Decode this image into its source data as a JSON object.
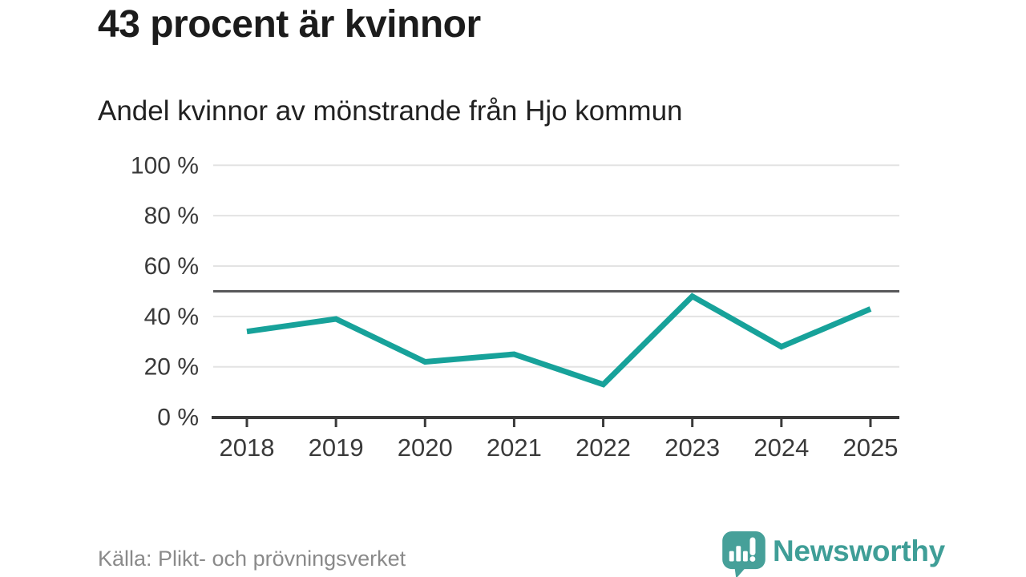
{
  "header": {
    "title": "43 procent är kvinnor",
    "subtitle": "Andel kvinnor av mönstrande från Hjo kommun"
  },
  "chart_data": {
    "type": "line",
    "title": "43 procent är kvinnor",
    "subtitle": "Andel kvinnor av mönstrande från Hjo kommun",
    "categories": [
      "2018",
      "2019",
      "2020",
      "2021",
      "2022",
      "2023",
      "2024",
      "2025"
    ],
    "series": [
      {
        "name": "Andel kvinnor av mönstrande",
        "values": [
          34,
          39,
          22,
          25,
          13,
          48,
          28,
          43
        ]
      }
    ],
    "unit": "%",
    "ylim": [
      0,
      100
    ],
    "yticks": [
      0,
      20,
      40,
      60,
      80,
      100
    ],
    "ytick_labels": [
      "0 %",
      "20 %",
      "40 %",
      "60 %",
      "80 %",
      "100 %"
    ],
    "reference_line_value": 50,
    "grid": "horizontal-only",
    "legend": "none",
    "line_color": "#17a29a",
    "reference_line_color": "#58585a",
    "gridline_color": "#e3e3e3",
    "axis_color": "#3a3a3a"
  },
  "footer": {
    "source": "Källa: Plikt- och prövningsverket",
    "brand": "Newsworthy",
    "brand_color": "#3f9e97",
    "logo_bubble_color": "#46a099"
  }
}
